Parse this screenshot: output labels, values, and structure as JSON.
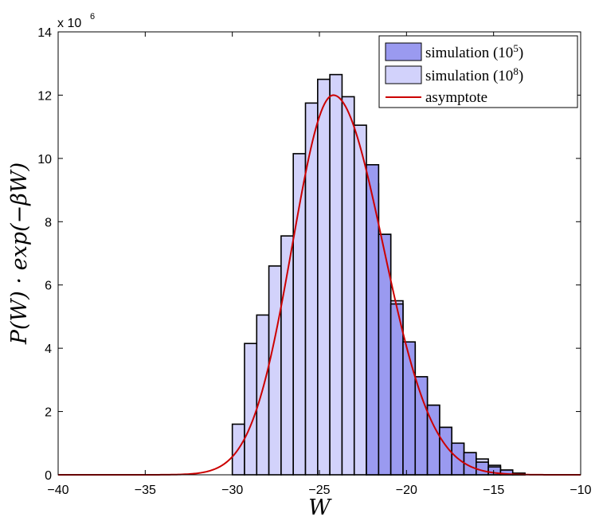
{
  "chart_data": {
    "type": "bar",
    "xlabel": "W",
    "ylabel": "P(W) · exp(−βW)",
    "y_multiplier": {
      "base": "x 10",
      "exponent": "6"
    },
    "xlim": [
      -40,
      -10
    ],
    "ylim": [
      0,
      14
    ],
    "x_ticks": [
      "−40",
      "−35",
      "−30",
      "−25",
      "−20",
      "−15",
      "−10"
    ],
    "y_ticks": [
      "0",
      "2",
      "4",
      "6",
      "8",
      "10",
      "12",
      "14"
    ],
    "grid": false,
    "legend_position": "top-right",
    "bin_edges": [
      -30.0,
      -29.3,
      -28.6,
      -27.9,
      -27.2,
      -26.5,
      -25.8,
      -25.1,
      -24.4,
      -23.7,
      -23.0,
      -22.3,
      -21.6,
      -20.9,
      -20.2,
      -19.5,
      -18.8,
      -18.1,
      -17.4,
      -16.7,
      -16.0,
      -15.3,
      -14.6,
      -13.9,
      -13.2
    ],
    "series": [
      {
        "name": "simulation (10^5)",
        "legend_label": "simulation (10",
        "legend_sup": "5",
        "legend_suffix": ")",
        "color": "#9a9af0",
        "values": [
          null,
          null,
          null,
          null,
          null,
          null,
          null,
          null,
          null,
          null,
          null,
          9.8,
          7.6,
          5.4,
          4.2,
          3.1,
          2.2,
          1.5,
          1.0,
          0.7,
          0.4,
          0.25,
          0.15,
          0.05
        ]
      },
      {
        "name": "simulation (10^8)",
        "legend_label": "simulation (10",
        "legend_sup": "8",
        "legend_suffix": ")",
        "color": "#d2d2fb",
        "values": [
          1.6,
          4.15,
          5.05,
          6.6,
          7.55,
          10.15,
          11.75,
          12.5,
          12.65,
          11.95,
          11.05,
          9.2,
          7.6,
          5.5,
          4.1,
          3.05,
          2.2,
          1.5,
          1.0,
          0.7,
          0.5,
          0.3,
          0.15,
          0.05
        ]
      },
      {
        "name": "asymptote",
        "color": "#cc0000",
        "type": "line",
        "peak_x": -24.2,
        "peak_y": 12.0
      }
    ]
  }
}
